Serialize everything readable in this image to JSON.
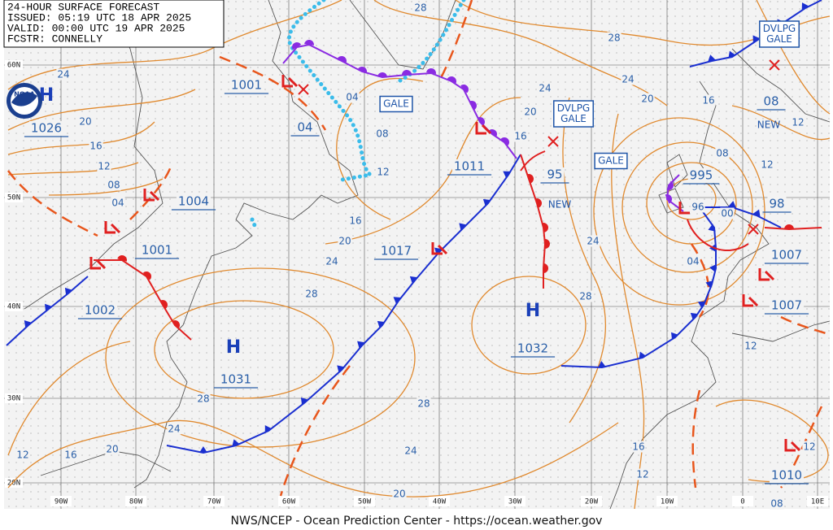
{
  "header": {
    "lines": [
      "24-HOUR SURFACE FORECAST",
      "ISSUED: 05:19 UTC 18 APR 2025",
      "VALID: 00:00 UTC 19 APR 2025",
      "FCSTR: CONNELLY"
    ]
  },
  "logo": "NOAA",
  "footer": "NWS/NCEP - Ocean Prediction Center - https://ocean.weather.gov",
  "grid_labels": {
    "latitudes": [
      "60N",
      "50N",
      "40N",
      "30N",
      "20N"
    ],
    "longitudes": [
      "90W",
      "80W",
      "70W",
      "60W",
      "50W",
      "40W",
      "30W",
      "20W",
      "10W",
      "0",
      "10E"
    ]
  },
  "high_symbols": [
    "H",
    "H",
    "H"
  ],
  "pressure_labels": [
    "1026",
    "1001",
    "04",
    "1004",
    "1001",
    "1002",
    "1031",
    "1017",
    "1011",
    "95",
    "1032",
    "995",
    "98",
    "1007",
    "1007",
    "08",
    "1010"
  ],
  "status_labels": [
    "NEW",
    "NEW"
  ],
  "warnings": [
    {
      "lines": [
        "GALE"
      ]
    },
    {
      "lines": [
        "DVLPG",
        "GALE"
      ]
    },
    {
      "lines": [
        "GALE"
      ]
    },
    {
      "lines": [
        "DVLPG",
        "GALE"
      ]
    }
  ],
  "isobar_labels": [
    "24",
    "20",
    "16",
    "12",
    "08",
    "04",
    "28",
    "28",
    "24",
    "20",
    "16",
    "04",
    "08",
    "12",
    "20",
    "16",
    "24",
    "16",
    "20",
    "24",
    "28",
    "28",
    "24",
    "20",
    "16",
    "12",
    "28",
    "24",
    "20",
    "24",
    "28",
    "16",
    "12",
    "08",
    "12",
    "00",
    "04",
    "12",
    "12",
    "08",
    "12",
    "96"
  ]
}
